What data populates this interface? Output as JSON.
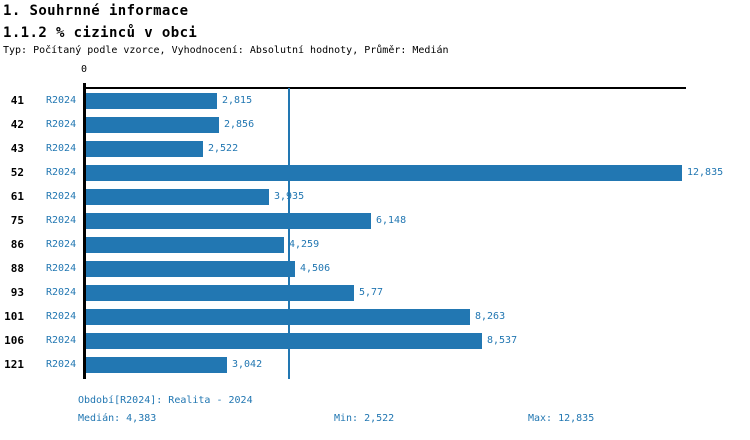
{
  "header": {
    "title": "1. Souhrnné informace",
    "subtitle": "1.1.2 % cizinců v obci",
    "meta": "Typ: Počítaný podle vzorce, Vyhodnocení: Absolutní hodnoty, Průměr: Medián"
  },
  "chart_data": {
    "type": "bar",
    "orientation": "horizontal",
    "title": "1.1.2 % cizinců v obci",
    "axis_zero_label": "0",
    "series_label": "R2024",
    "categories": [
      "41",
      "42",
      "43",
      "52",
      "61",
      "75",
      "86",
      "88",
      "93",
      "101",
      "106",
      "121"
    ],
    "values": [
      2.815,
      2.856,
      2.522,
      12.835,
      3.935,
      6.148,
      4.259,
      4.506,
      5.77,
      8.263,
      8.537,
      3.042
    ],
    "value_labels": [
      "2,815",
      "2,856",
      "2,522",
      "12,835",
      "3,935",
      "6,148",
      "4,259",
      "4,506",
      "5,77",
      "8,263",
      "8,537",
      "3,042"
    ],
    "xlim": [
      0,
      12.835
    ],
    "median_value": 4.383,
    "grid": false,
    "legend_position": "none",
    "bar_color": "#2277b2",
    "median_line_color": "#2277b2",
    "label_color": "#2277b2"
  },
  "footer": {
    "period": "Období[R2024]: Realita - 2024",
    "median": "Medián: 4,383",
    "min": "Min: 2,522",
    "max": "Max: 12,835"
  }
}
